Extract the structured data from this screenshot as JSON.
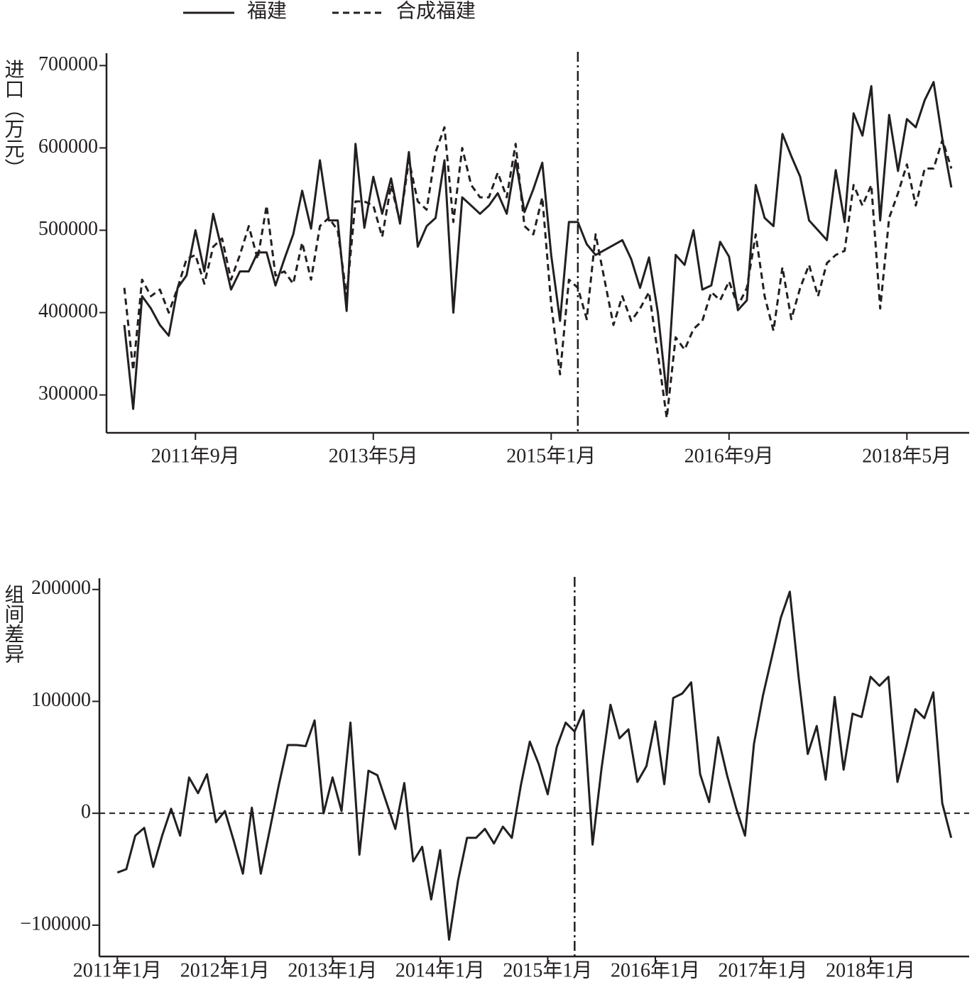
{
  "chart_data": [
    {
      "type": "line",
      "y_label": "进口（万元）",
      "legend": "top",
      "x": [
        "2011-01",
        "2011-02",
        "2011-03",
        "2011-04",
        "2011-05",
        "2011-06",
        "2011-07",
        "2011-08",
        "2011-09",
        "2011-10",
        "2011-11",
        "2011-12",
        "2012-01",
        "2012-02",
        "2012-03",
        "2012-04",
        "2012-05",
        "2012-06",
        "2012-07",
        "2012-08",
        "2012-09",
        "2012-10",
        "2012-11",
        "2012-12",
        "2013-01",
        "2013-02",
        "2013-03",
        "2013-04",
        "2013-05",
        "2013-06",
        "2013-07",
        "2013-08",
        "2013-09",
        "2013-10",
        "2013-11",
        "2013-12",
        "2014-01",
        "2014-02",
        "2014-03",
        "2014-04",
        "2014-05",
        "2014-06",
        "2014-07",
        "2014-08",
        "2014-09",
        "2014-10",
        "2014-11",
        "2014-12",
        "2015-01",
        "2015-02",
        "2015-03",
        "2015-04",
        "2015-05",
        "2015-06",
        "2015-07",
        "2015-08",
        "2015-09",
        "2015-10",
        "2015-11",
        "2015-12",
        "2016-01",
        "2016-02",
        "2016-03",
        "2016-04",
        "2016-05",
        "2016-06",
        "2016-07",
        "2016-08",
        "2016-09",
        "2016-10",
        "2016-11",
        "2016-12",
        "2017-01",
        "2017-02",
        "2017-03",
        "2017-04",
        "2017-05",
        "2017-06",
        "2017-07",
        "2017-08",
        "2017-09",
        "2017-10",
        "2017-11",
        "2017-12",
        "2018-01",
        "2018-02",
        "2018-03",
        "2018-04",
        "2018-05",
        "2018-06",
        "2018-07",
        "2018-08",
        "2018-09",
        "2018-10"
      ],
      "series": [
        {
          "name": "福建",
          "color": "#231f20",
          "style": "solid",
          "values": [
            385000,
            283000,
            420000,
            405000,
            385000,
            372000,
            430000,
            445000,
            500000,
            450000,
            520000,
            475000,
            428000,
            450000,
            450000,
            473000,
            473000,
            433000,
            465000,
            495000,
            548000,
            502000,
            585000,
            512000,
            512000,
            402000,
            605000,
            503000,
            565000,
            520000,
            563000,
            508000,
            595000,
            480000,
            505000,
            515000,
            585000,
            400000,
            540000,
            530000,
            520000,
            530000,
            545000,
            520000,
            585000,
            522000,
            550000,
            582000,
            470000,
            390000,
            510000,
            510000,
            483000,
            470000,
            476000,
            482000,
            488000,
            465000,
            430000,
            467000,
            400000,
            300000,
            470000,
            458000,
            500000,
            428000,
            433000,
            486000,
            468000,
            403000,
            415000,
            555000,
            515000,
            505000,
            617000,
            590000,
            565000,
            512000,
            500000,
            488000,
            573000,
            510000,
            642000,
            615000,
            675000,
            512000,
            640000,
            572000,
            635000,
            625000,
            658000,
            680000,
            610000,
            552000
          ]
        },
        {
          "name": "合成福建",
          "color": "#231f20",
          "style": "dashed",
          "values": [
            430000,
            330000,
            440000,
            420000,
            428000,
            400000,
            430000,
            465000,
            470000,
            435000,
            480000,
            490000,
            440000,
            470000,
            505000,
            465000,
            530000,
            445000,
            450000,
            435000,
            485000,
            440000,
            505000,
            515000,
            500000,
            420000,
            535000,
            535000,
            530000,
            492000,
            555000,
            510000,
            585000,
            535000,
            525000,
            595000,
            625000,
            510000,
            600000,
            555000,
            540000,
            540000,
            570000,
            540000,
            605000,
            505000,
            495000,
            540000,
            410000,
            325000,
            440000,
            430000,
            392000,
            495000,
            440000,
            385000,
            420000,
            390000,
            405000,
            425000,
            350000,
            272000,
            370000,
            355000,
            380000,
            390000,
            425000,
            415000,
            438000,
            408000,
            430000,
            495000,
            420000,
            378000,
            455000,
            392000,
            430000,
            458000,
            420000,
            460000,
            470000,
            475000,
            555000,
            530000,
            555000,
            405000,
            515000,
            545000,
            580000,
            530000,
            575000,
            575000,
            610000,
            575000
          ]
        }
      ],
      "xlim": [
        "2010-11",
        "2018-12"
      ],
      "xticks": [
        {
          "value": "2011-09",
          "label": "2011年9月"
        },
        {
          "value": "2013-05",
          "label": "2013年5月"
        },
        {
          "value": "2015-01",
          "label": "2015年1月"
        },
        {
          "value": "2016-09",
          "label": "2016年9月"
        },
        {
          "value": "2018-05",
          "label": "2018年5月"
        }
      ],
      "ylim": [
        254000,
        715000
      ],
      "yticks": [
        300000,
        400000,
        500000,
        600000,
        700000
      ],
      "vline": "2015-04"
    },
    {
      "type": "line",
      "y_label": "组间差异",
      "x": [
        "2011-01",
        "2011-02",
        "2011-03",
        "2011-04",
        "2011-05",
        "2011-06",
        "2011-07",
        "2011-08",
        "2011-09",
        "2011-10",
        "2011-11",
        "2011-12",
        "2012-01",
        "2012-02",
        "2012-03",
        "2012-04",
        "2012-05",
        "2012-06",
        "2012-07",
        "2012-08",
        "2012-09",
        "2012-10",
        "2012-11",
        "2012-12",
        "2013-01",
        "2013-02",
        "2013-03",
        "2013-04",
        "2013-05",
        "2013-06",
        "2013-07",
        "2013-08",
        "2013-09",
        "2013-10",
        "2013-11",
        "2013-12",
        "2014-01",
        "2014-02",
        "2014-03",
        "2014-04",
        "2014-05",
        "2014-06",
        "2014-07",
        "2014-08",
        "2014-09",
        "2014-10",
        "2014-11",
        "2014-12",
        "2015-01",
        "2015-02",
        "2015-03",
        "2015-04",
        "2015-05",
        "2015-06",
        "2015-07",
        "2015-08",
        "2015-09",
        "2015-10",
        "2015-11",
        "2015-12",
        "2016-01",
        "2016-02",
        "2016-03",
        "2016-04",
        "2016-05",
        "2016-06",
        "2016-07",
        "2016-08",
        "2016-09",
        "2016-10",
        "2016-11",
        "2016-12",
        "2017-01",
        "2017-02",
        "2017-03",
        "2017-04",
        "2017-05",
        "2017-06",
        "2017-07",
        "2017-08",
        "2017-09",
        "2017-10",
        "2017-11",
        "2017-12",
        "2018-01",
        "2018-02",
        "2018-03",
        "2018-04",
        "2018-05",
        "2018-06",
        "2018-07",
        "2018-08",
        "2018-09",
        "2018-10"
      ],
      "series": [
        {
          "color": "#231f20",
          "style": "solid",
          "values": [
            -53000,
            -50000,
            -20000,
            -13000,
            -48000,
            -20000,
            4000,
            -20000,
            32000,
            18000,
            35000,
            -8000,
            2000,
            -25000,
            -54000,
            5000,
            -54000,
            -15000,
            25000,
            61000,
            61000,
            60000,
            83000,
            0,
            32000,
            2000,
            81000,
            -37000,
            38000,
            34000,
            10000,
            -14000,
            27000,
            -43000,
            -30000,
            -77000,
            -33000,
            -113000,
            -60000,
            -22000,
            -22000,
            -14000,
            -27000,
            -12000,
            -22000,
            25000,
            64000,
            44000,
            17000,
            59000,
            81000,
            73000,
            92000,
            -28000,
            40000,
            97000,
            67000,
            75000,
            28000,
            42000,
            82000,
            26000,
            103000,
            107000,
            117000,
            35000,
            10000,
            68000,
            34000,
            5000,
            -20000,
            62000,
            105000,
            140000,
            175000,
            198000,
            120000,
            53000,
            78000,
            30000,
            104000,
            39000,
            89000,
            86000,
            122000,
            114000,
            122000,
            28000,
            60000,
            93000,
            85000,
            108000,
            9000,
            -22000
          ]
        }
      ],
      "xlim": [
        "2010-11",
        "2018-12"
      ],
      "xticks": [
        {
          "value": "2011-01",
          "label": "2011年1月"
        },
        {
          "value": "2012-01",
          "label": "2012年1月"
        },
        {
          "value": "2013-01",
          "label": "2013年1月"
        },
        {
          "value": "2014-01",
          "label": "2014年1月"
        },
        {
          "value": "2015-01",
          "label": "2015年1月"
        },
        {
          "value": "2016-01",
          "label": "2016年1月"
        },
        {
          "value": "2017-01",
          "label": "2017年1月"
        },
        {
          "value": "2018-01",
          "label": "2018年1月"
        }
      ],
      "ylim": [
        -128000,
        210000
      ],
      "yticks": [
        {
          "value": -100000,
          "label": "−100000"
        },
        0,
        100000,
        200000
      ],
      "hline": 0,
      "vline": "2015-04"
    }
  ]
}
